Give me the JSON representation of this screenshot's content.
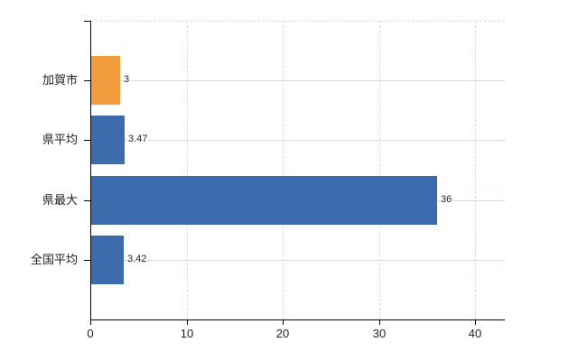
{
  "chart_data": {
    "type": "bar",
    "orientation": "horizontal",
    "title": "",
    "xlabel": "",
    "ylabel": "",
    "categories": [
      "加賀市",
      "県平均",
      "県最大",
      "全国平均"
    ],
    "values": [
      3,
      3.47,
      36,
      3.42
    ],
    "value_labels": [
      "3",
      "3.47",
      "36",
      "3.42"
    ],
    "bar_colors": [
      "#F09C3C",
      "#3C6CAE",
      "#3C6CAE",
      "#3C6CAE"
    ],
    "x_tick_labels": [
      "0",
      "10",
      "20",
      "30",
      "40"
    ],
    "x_tick_values": [
      0,
      10,
      20,
      30,
      40
    ],
    "xlim": [
      0,
      43.1
    ],
    "grid": true,
    "legend_position": "none",
    "colors": {
      "bar_orange": "#F09C3C",
      "bar_blue": "#3C6CAE",
      "axis": "#000000",
      "gridline_vertical": "#D9D9D9",
      "gridline_horizontal": "#D5DCD5",
      "background": "#FFFFFF",
      "text": "#222222"
    }
  }
}
